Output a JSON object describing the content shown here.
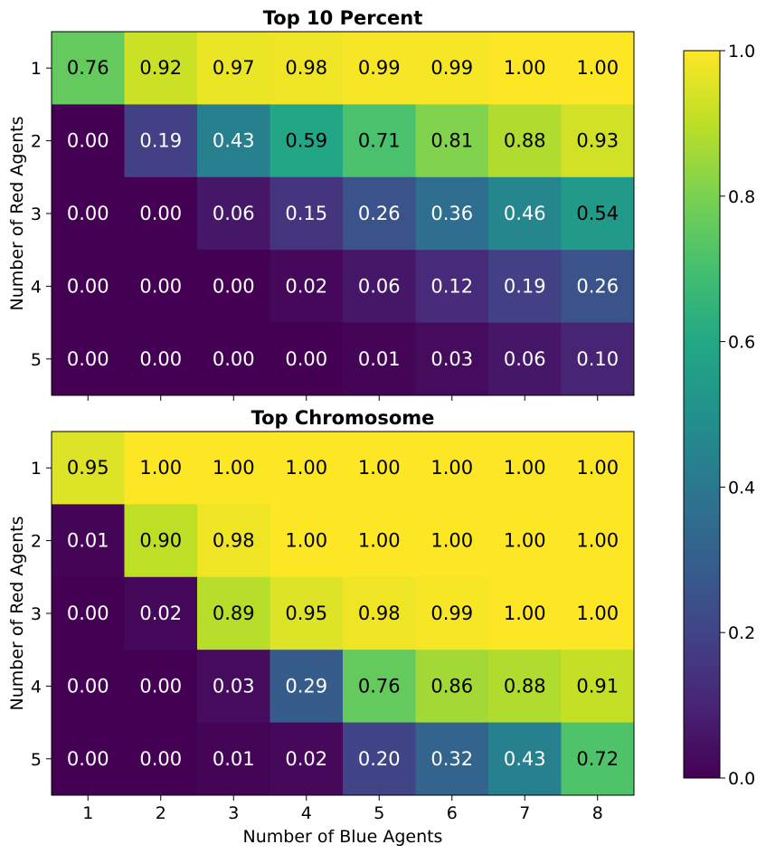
{
  "chart_data": [
    {
      "type": "heatmap",
      "title": "Top 10 Percent",
      "xlabel": "",
      "ylabel": "Number of Red Agents",
      "x_categories": [
        "1",
        "2",
        "3",
        "4",
        "5",
        "6",
        "7",
        "8"
      ],
      "y_categories": [
        "1",
        "2",
        "3",
        "4",
        "5"
      ],
      "values": [
        [
          0.76,
          0.92,
          0.97,
          0.98,
          0.99,
          0.99,
          1.0,
          1.0
        ],
        [
          0.0,
          0.19,
          0.43,
          0.59,
          0.71,
          0.81,
          0.88,
          0.93
        ],
        [
          0.0,
          0.0,
          0.06,
          0.15,
          0.26,
          0.36,
          0.46,
          0.54
        ],
        [
          0.0,
          0.0,
          0.0,
          0.02,
          0.06,
          0.12,
          0.19,
          0.26
        ],
        [
          0.0,
          0.0,
          0.0,
          0.0,
          0.01,
          0.03,
          0.06,
          0.1
        ]
      ],
      "labels": [
        [
          "0.76",
          "0.92",
          "0.97",
          "0.98",
          "0.99",
          "0.99",
          "1.00",
          "1.00"
        ],
        [
          "0.00",
          "0.19",
          "0.43",
          "0.59",
          "0.71",
          "0.81",
          "0.88",
          "0.93"
        ],
        [
          "0.00",
          "0.00",
          "0.06",
          "0.15",
          "0.26",
          "0.36",
          "0.46",
          "0.54"
        ],
        [
          "0.00",
          "0.00",
          "0.00",
          "0.02",
          "0.06",
          "0.12",
          "0.19",
          "0.26"
        ],
        [
          "0.00",
          "0.00",
          "0.00",
          "0.00",
          "0.01",
          "0.03",
          "0.06",
          "0.10"
        ]
      ]
    },
    {
      "type": "heatmap",
      "title": "Top Chromosome",
      "xlabel": "Number of Blue Agents",
      "ylabel": "Number of Red Agents",
      "x_categories": [
        "1",
        "2",
        "3",
        "4",
        "5",
        "6",
        "7",
        "8"
      ],
      "y_categories": [
        "1",
        "2",
        "3",
        "4",
        "5"
      ],
      "values": [
        [
          0.95,
          1.0,
          1.0,
          1.0,
          1.0,
          1.0,
          1.0,
          1.0
        ],
        [
          0.01,
          0.9,
          0.98,
          1.0,
          1.0,
          1.0,
          1.0,
          1.0
        ],
        [
          0.0,
          0.02,
          0.89,
          0.95,
          0.98,
          0.99,
          1.0,
          1.0
        ],
        [
          0.0,
          0.0,
          0.03,
          0.29,
          0.76,
          0.86,
          0.88,
          0.91
        ],
        [
          0.0,
          0.0,
          0.01,
          0.02,
          0.2,
          0.32,
          0.43,
          0.72
        ]
      ],
      "labels": [
        [
          "0.95",
          "1.00",
          "1.00",
          "1.00",
          "1.00",
          "1.00",
          "1.00",
          "1.00"
        ],
        [
          "0.01",
          "0.90",
          "0.98",
          "1.00",
          "1.00",
          "1.00",
          "1.00",
          "1.00"
        ],
        [
          "0.00",
          "0.02",
          "0.89",
          "0.95",
          "0.98",
          "0.99",
          "1.00",
          "1.00"
        ],
        [
          "0.00",
          "0.00",
          "0.03",
          "0.29",
          "0.76",
          "0.86",
          "0.88",
          "0.91"
        ],
        [
          "0.00",
          "0.00",
          "0.01",
          "0.02",
          "0.20",
          "0.32",
          "0.43",
          "0.72"
        ]
      ]
    }
  ],
  "colorbar": {
    "colormap": "viridis",
    "range": [
      0.0,
      1.0
    ],
    "tick_labels": [
      "0.0",
      "0.2",
      "0.4",
      "0.6",
      "0.8",
      "1.0"
    ],
    "tick_values": [
      0.0,
      0.2,
      0.4,
      0.6,
      0.8,
      1.0
    ]
  },
  "text_colors": {
    "dark_cells": "#ffffff",
    "light_cells": "#000000"
  }
}
